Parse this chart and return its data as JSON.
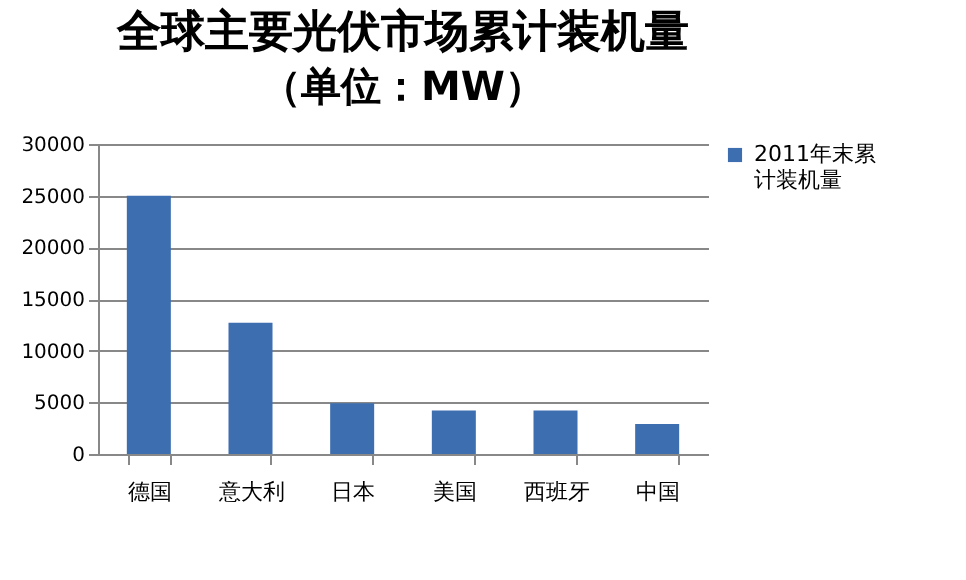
{
  "chart_data": {
    "type": "bar",
    "title": "全球主要光伏市场累计装机量",
    "subtitle": "（单位：MW）",
    "categories": [
      "德国",
      "意大利",
      "日本",
      "美国",
      "西班牙",
      "中国"
    ],
    "series": [
      {
        "name": "2011年末累计装机量",
        "color": "#3d6eb0",
        "values": [
          25000,
          12700,
          4900,
          4200,
          4200,
          2900
        ]
      }
    ],
    "ylim": [
      0,
      30000
    ],
    "yticks": [
      0,
      5000,
      10000,
      15000,
      20000,
      25000,
      30000
    ],
    "grid": "y",
    "legend": "right"
  }
}
